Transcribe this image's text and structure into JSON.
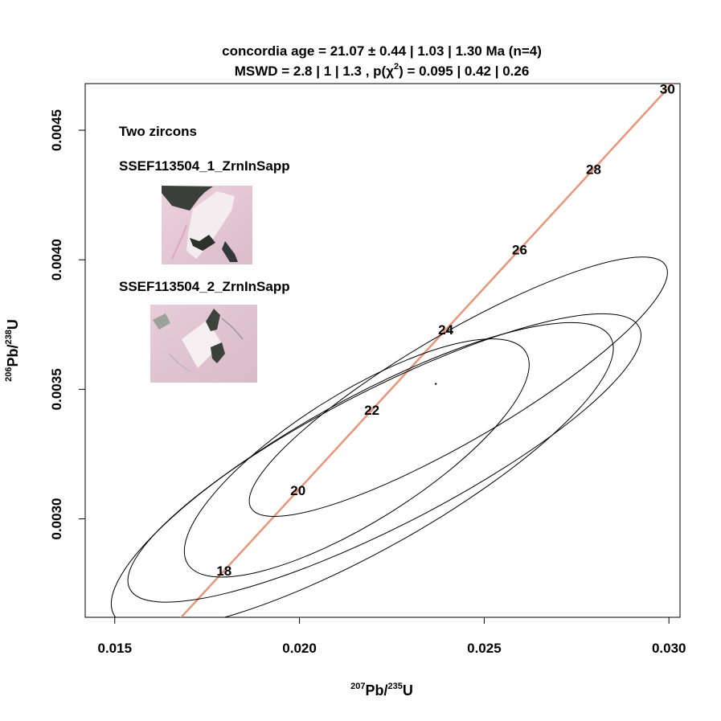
{
  "chart_data": {
    "type": "scatter",
    "title_line1": "concordia age = 21.07 ± 0.44 | 1.03 | 1.30 Ma (n=4)",
    "title_line2_prefix": "MSWD = 2.8 | 1 | 1.3 , p(χ",
    "title_line2_sup": "2",
    "title_line2_suffix": ") = 0.095 | 0.42 | 0.26",
    "xlabel": {
      "sup": "207",
      "main": "Pb/",
      "sup2": "235",
      "tail": "U"
    },
    "ylabel": {
      "sup": "206",
      "main": "Pb/",
      "sup2": "238",
      "tail": "U"
    },
    "xlim": [
      0.0142,
      0.0303
    ],
    "ylim": [
      0.00262,
      0.00468
    ],
    "xticks": [
      0.015,
      0.02,
      0.025,
      0.03
    ],
    "xtick_labels": [
      "0.015",
      "0.020",
      "0.025",
      "0.030"
    ],
    "yticks": [
      0.003,
      0.0035,
      0.004,
      0.0045
    ],
    "ytick_labels": [
      "0.0030",
      "0.0035",
      "0.0040",
      "0.0045"
    ],
    "concordia_color": "#e8957a",
    "concordia_ages": [
      18,
      20,
      22,
      24,
      26,
      28,
      30
    ],
    "concordia_points": [
      {
        "age": 18,
        "x": 0.01796,
        "y": 0.0028
      },
      {
        "age": 20,
        "x": 0.01996,
        "y": 0.00311
      },
      {
        "age": 22,
        "x": 0.02196,
        "y": 0.00342
      },
      {
        "age": 24,
        "x": 0.02396,
        "y": 0.00373
      },
      {
        "age": 26,
        "x": 0.02596,
        "y": 0.00404
      },
      {
        "age": 28,
        "x": 0.02796,
        "y": 0.00435
      },
      {
        "age": 30,
        "x": 0.02996,
        "y": 0.00466
      }
    ],
    "concordia_age_point": {
      "x": 0.02369,
      "y": 0.003521
    },
    "series": [
      {
        "values": {
          "x": 0.02155,
          "y": 0.003235,
          "a": 0.0054,
          "b": 0.000215,
          "angle_deg": 32.1
        }
      },
      {
        "values": {
          "x": 0.0217,
          "y": 0.003165,
          "a": 0.0077,
          "b": 0.000252,
          "angle_deg": 29.2
        }
      },
      {
        "values": {
          "x": 0.0223,
          "y": 0.003235,
          "a": 0.00775,
          "b": 0.000228,
          "angle_deg": 27.2
        }
      },
      {
        "values": {
          "x": 0.0243,
          "y": 0.00351,
          "a": 0.0065,
          "b": 0.00018,
          "angle_deg": 30.3
        }
      }
    ],
    "annotations": [
      {
        "text": "Two zircons"
      },
      {
        "text": "SSEF113504_1_ZrnInSapp"
      },
      {
        "text": "SSEF113504_2_ZrnInSapp"
      }
    ],
    "grid": false,
    "legend": "none"
  }
}
